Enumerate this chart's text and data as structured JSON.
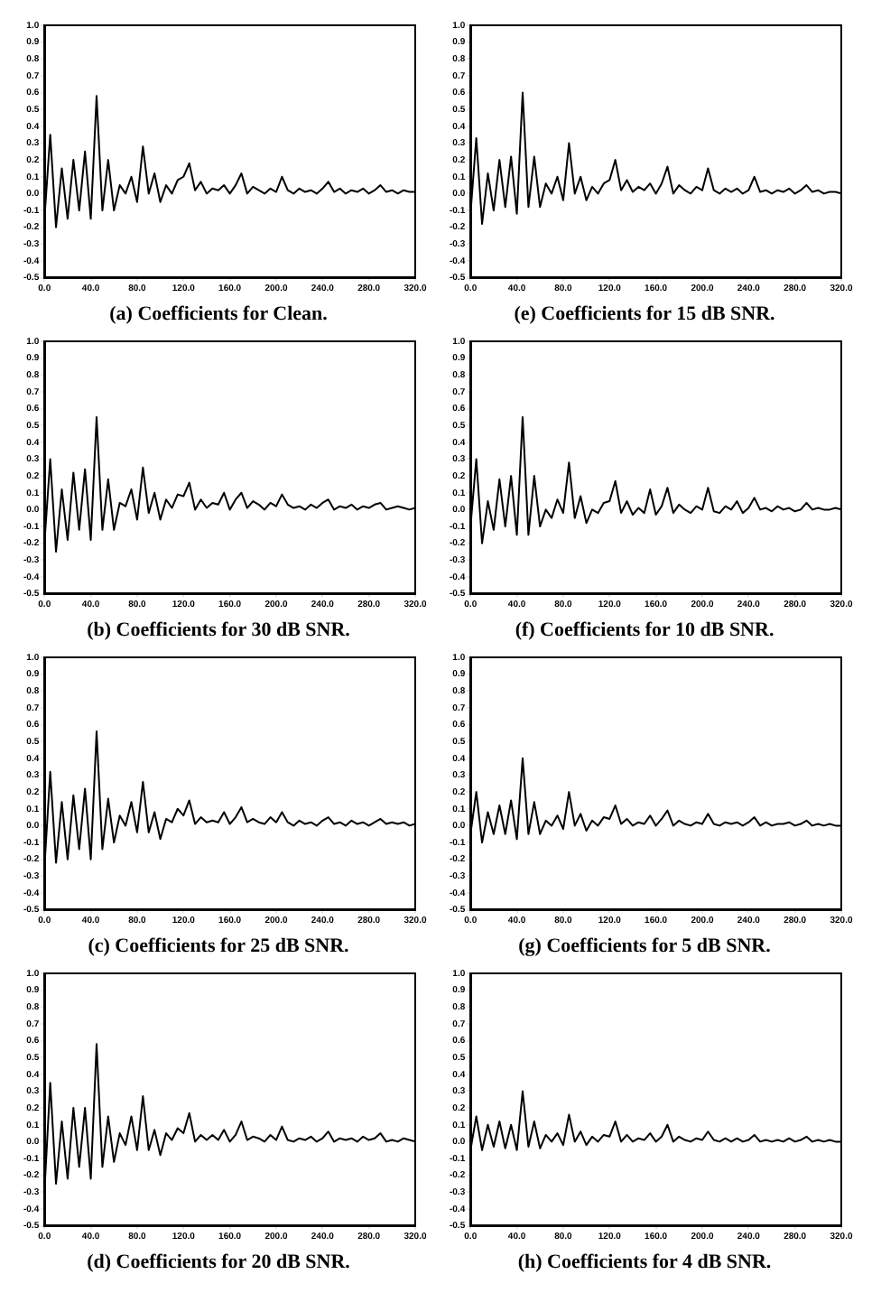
{
  "chart_data": [
    {
      "type": "line",
      "title": "(a) Coefficients for Clean.",
      "color": "#000000",
      "marker": "none",
      "line_style": "solid",
      "grid": false,
      "legend": false,
      "xlim": [
        0,
        320
      ],
      "ylim": [
        -0.5,
        1
      ],
      "xticks": [
        {
          "value": 0,
          "label": "0.0"
        },
        {
          "value": 40,
          "label": "40.0"
        },
        {
          "value": 80,
          "label": "80.0"
        },
        {
          "value": 120,
          "label": "120.0"
        },
        {
          "value": 160,
          "label": "160.0"
        },
        {
          "value": 200,
          "label": "200.0"
        },
        {
          "value": 240,
          "label": "240.0"
        },
        {
          "value": 280,
          "label": "280.0"
        },
        {
          "value": 320,
          "label": "320.0"
        }
      ],
      "yticks": [
        {
          "value": 1,
          "label": "1.0"
        },
        {
          "value": 0.9,
          "label": "0.9"
        },
        {
          "value": 0.8,
          "label": "0.8"
        },
        {
          "value": 0.7,
          "label": "0.7"
        },
        {
          "value": 0.6,
          "label": "0.6"
        },
        {
          "value": 0.5,
          "label": "0.5"
        },
        {
          "value": 0.4,
          "label": "0.4"
        },
        {
          "value": 0.3,
          "label": "0.3"
        },
        {
          "value": 0.2,
          "label": "0.2"
        },
        {
          "value": 0.1,
          "label": "0.1"
        },
        {
          "value": 0,
          "label": "0.0"
        },
        {
          "value": -0.1,
          "label": "-0.1"
        },
        {
          "value": -0.2,
          "label": "-0.2"
        },
        {
          "value": -0.3,
          "label": "-0.3"
        },
        {
          "value": -0.4,
          "label": "-0.4"
        },
        {
          "value": -0.5,
          "label": "-0.5"
        }
      ],
      "x": [
        0,
        5,
        10,
        15,
        20,
        25,
        30,
        35,
        40,
        45,
        50,
        55,
        60,
        65,
        70,
        75,
        80,
        85,
        90,
        95,
        100,
        105,
        110,
        115,
        120,
        125,
        130,
        135,
        140,
        145,
        150,
        155,
        160,
        165,
        170,
        175,
        180,
        185,
        190,
        195,
        200,
        205,
        210,
        215,
        220,
        225,
        230,
        235,
        240,
        245,
        250,
        255,
        260,
        265,
        270,
        275,
        280,
        285,
        290,
        295,
        300,
        305,
        310,
        315,
        320
      ],
      "values": [
        -0.15,
        0.35,
        -0.2,
        0.15,
        -0.15,
        0.2,
        -0.1,
        0.25,
        -0.15,
        0.58,
        -0.1,
        0.2,
        -0.1,
        0.05,
        0.0,
        0.1,
        -0.05,
        0.28,
        0.0,
        0.12,
        -0.05,
        0.05,
        0.0,
        0.08,
        0.1,
        0.18,
        0.02,
        0.07,
        0.0,
        0.03,
        0.02,
        0.05,
        0.0,
        0.05,
        0.12,
        0.0,
        0.04,
        0.02,
        0.0,
        0.03,
        0.01,
        0.1,
        0.02,
        0.0,
        0.03,
        0.01,
        0.02,
        0.0,
        0.03,
        0.07,
        0.01,
        0.03,
        0.0,
        0.02,
        0.01,
        0.03,
        0.0,
        0.02,
        0.05,
        0.01,
        0.02,
        0.0,
        0.02,
        0.01,
        0.01
      ]
    },
    {
      "type": "line",
      "title": "(b) Coefficients for 30 dB SNR.",
      "color": "#000000",
      "marker": "none",
      "line_style": "solid",
      "grid": false,
      "legend": false,
      "xlim": [
        0,
        320
      ],
      "ylim": [
        -0.5,
        1
      ],
      "xticks": [
        {
          "value": 0,
          "label": "0.0"
        },
        {
          "value": 40,
          "label": "40.0"
        },
        {
          "value": 80,
          "label": "80.0"
        },
        {
          "value": 120,
          "label": "120.0"
        },
        {
          "value": 160,
          "label": "160.0"
        },
        {
          "value": 200,
          "label": "200.0"
        },
        {
          "value": 240,
          "label": "240.0"
        },
        {
          "value": 280,
          "label": "280.0"
        },
        {
          "value": 320,
          "label": "320.0"
        }
      ],
      "yticks": [
        {
          "value": 1,
          "label": "1.0"
        },
        {
          "value": 0.9,
          "label": "0.9"
        },
        {
          "value": 0.8,
          "label": "0.8"
        },
        {
          "value": 0.7,
          "label": "0.7"
        },
        {
          "value": 0.6,
          "label": "0.6"
        },
        {
          "value": 0.5,
          "label": "0.5"
        },
        {
          "value": 0.4,
          "label": "0.4"
        },
        {
          "value": 0.3,
          "label": "0.3"
        },
        {
          "value": 0.2,
          "label": "0.2"
        },
        {
          "value": 0.1,
          "label": "0.1"
        },
        {
          "value": 0,
          "label": "0.0"
        },
        {
          "value": -0.1,
          "label": "-0.1"
        },
        {
          "value": -0.2,
          "label": "-0.2"
        },
        {
          "value": -0.3,
          "label": "-0.3"
        },
        {
          "value": -0.4,
          "label": "-0.4"
        },
        {
          "value": -0.5,
          "label": "-0.5"
        }
      ],
      "x": [
        0,
        5,
        10,
        15,
        20,
        25,
        30,
        35,
        40,
        45,
        50,
        55,
        60,
        65,
        70,
        75,
        80,
        85,
        90,
        95,
        100,
        105,
        110,
        115,
        120,
        125,
        130,
        135,
        140,
        145,
        150,
        155,
        160,
        165,
        170,
        175,
        180,
        185,
        190,
        195,
        200,
        205,
        210,
        215,
        220,
        225,
        230,
        235,
        240,
        245,
        250,
        255,
        260,
        265,
        270,
        275,
        280,
        285,
        290,
        295,
        300,
        305,
        310,
        315,
        320
      ],
      "values": [
        -0.2,
        0.3,
        -0.25,
        0.12,
        -0.18,
        0.22,
        -0.12,
        0.24,
        -0.18,
        0.55,
        -0.12,
        0.18,
        -0.12,
        0.04,
        0.02,
        0.12,
        -0.06,
        0.25,
        -0.02,
        0.1,
        -0.06,
        0.06,
        0.01,
        0.09,
        0.08,
        0.16,
        0.0,
        0.06,
        0.01,
        0.04,
        0.03,
        0.1,
        0.0,
        0.06,
        0.1,
        0.01,
        0.05,
        0.03,
        0.0,
        0.04,
        0.02,
        0.09,
        0.03,
        0.01,
        0.02,
        0.0,
        0.03,
        0.01,
        0.04,
        0.06,
        0.0,
        0.02,
        0.01,
        0.03,
        0.0,
        0.02,
        0.01,
        0.03,
        0.04,
        0.0,
        0.01,
        0.02,
        0.01,
        0.0,
        0.01
      ]
    },
    {
      "type": "line",
      "title": "(c) Coefficients for 25 dB SNR.",
      "color": "#000000",
      "marker": "none",
      "line_style": "solid",
      "grid": false,
      "legend": false,
      "xlim": [
        0,
        320
      ],
      "ylim": [
        -0.5,
        1
      ],
      "xticks": [
        {
          "value": 0,
          "label": "0.0"
        },
        {
          "value": 40,
          "label": "40.0"
        },
        {
          "value": 80,
          "label": "80.0"
        },
        {
          "value": 120,
          "label": "120.0"
        },
        {
          "value": 160,
          "label": "160.0"
        },
        {
          "value": 200,
          "label": "200.0"
        },
        {
          "value": 240,
          "label": "240.0"
        },
        {
          "value": 280,
          "label": "280.0"
        },
        {
          "value": 320,
          "label": "320.0"
        }
      ],
      "yticks": [
        {
          "value": 1,
          "label": "1.0"
        },
        {
          "value": 0.9,
          "label": "0.9"
        },
        {
          "value": 0.8,
          "label": "0.8"
        },
        {
          "value": 0.7,
          "label": "0.7"
        },
        {
          "value": 0.6,
          "label": "0.6"
        },
        {
          "value": 0.5,
          "label": "0.5"
        },
        {
          "value": 0.4,
          "label": "0.4"
        },
        {
          "value": 0.3,
          "label": "0.3"
        },
        {
          "value": 0.2,
          "label": "0.2"
        },
        {
          "value": 0.1,
          "label": "0.1"
        },
        {
          "value": 0,
          "label": "0.0"
        },
        {
          "value": -0.1,
          "label": "-0.1"
        },
        {
          "value": -0.2,
          "label": "-0.2"
        },
        {
          "value": -0.3,
          "label": "-0.3"
        },
        {
          "value": -0.4,
          "label": "-0.4"
        },
        {
          "value": -0.5,
          "label": "-0.5"
        }
      ],
      "x": [
        0,
        5,
        10,
        15,
        20,
        25,
        30,
        35,
        40,
        45,
        50,
        55,
        60,
        65,
        70,
        75,
        80,
        85,
        90,
        95,
        100,
        105,
        110,
        115,
        120,
        125,
        130,
        135,
        140,
        145,
        150,
        155,
        160,
        165,
        170,
        175,
        180,
        185,
        190,
        195,
        200,
        205,
        210,
        215,
        220,
        225,
        230,
        235,
        240,
        245,
        250,
        255,
        260,
        265,
        270,
        275,
        280,
        285,
        290,
        295,
        300,
        305,
        310,
        315,
        320
      ],
      "values": [
        -0.25,
        0.32,
        -0.22,
        0.14,
        -0.2,
        0.18,
        -0.14,
        0.22,
        -0.2,
        0.56,
        -0.14,
        0.16,
        -0.1,
        0.06,
        0.0,
        0.14,
        -0.04,
        0.26,
        -0.04,
        0.08,
        -0.08,
        0.04,
        0.02,
        0.1,
        0.06,
        0.15,
        0.01,
        0.05,
        0.02,
        0.03,
        0.02,
        0.08,
        0.01,
        0.05,
        0.11,
        0.02,
        0.04,
        0.02,
        0.01,
        0.05,
        0.02,
        0.08,
        0.02,
        0.0,
        0.03,
        0.01,
        0.02,
        0.0,
        0.03,
        0.05,
        0.01,
        0.02,
        0.0,
        0.03,
        0.01,
        0.02,
        0.0,
        0.02,
        0.04,
        0.01,
        0.02,
        0.01,
        0.02,
        0.0,
        0.01
      ]
    },
    {
      "type": "line",
      "title": "(d) Coefficients for 20 dB SNR.",
      "color": "#000000",
      "marker": "none",
      "line_style": "solid",
      "grid": false,
      "legend": false,
      "xlim": [
        0,
        320
      ],
      "ylim": [
        -0.5,
        1
      ],
      "xticks": [
        {
          "value": 0,
          "label": "0.0"
        },
        {
          "value": 40,
          "label": "40.0"
        },
        {
          "value": 80,
          "label": "80.0"
        },
        {
          "value": 120,
          "label": "120.0"
        },
        {
          "value": 160,
          "label": "160.0"
        },
        {
          "value": 200,
          "label": "200.0"
        },
        {
          "value": 240,
          "label": "240.0"
        },
        {
          "value": 280,
          "label": "280.0"
        },
        {
          "value": 320,
          "label": "320.0"
        }
      ],
      "yticks": [
        {
          "value": 1,
          "label": "1.0"
        },
        {
          "value": 0.9,
          "label": "0.9"
        },
        {
          "value": 0.8,
          "label": "0.8"
        },
        {
          "value": 0.7,
          "label": "0.7"
        },
        {
          "value": 0.6,
          "label": "0.6"
        },
        {
          "value": 0.5,
          "label": "0.5"
        },
        {
          "value": 0.4,
          "label": "0.4"
        },
        {
          "value": 0.3,
          "label": "0.3"
        },
        {
          "value": 0.2,
          "label": "0.2"
        },
        {
          "value": 0.1,
          "label": "0.1"
        },
        {
          "value": 0,
          "label": "0.0"
        },
        {
          "value": -0.1,
          "label": "-0.1"
        },
        {
          "value": -0.2,
          "label": "-0.2"
        },
        {
          "value": -0.3,
          "label": "-0.3"
        },
        {
          "value": -0.4,
          "label": "-0.4"
        },
        {
          "value": -0.5,
          "label": "-0.5"
        }
      ],
      "x": [
        0,
        5,
        10,
        15,
        20,
        25,
        30,
        35,
        40,
        45,
        50,
        55,
        60,
        65,
        70,
        75,
        80,
        85,
        90,
        95,
        100,
        105,
        110,
        115,
        120,
        125,
        130,
        135,
        140,
        145,
        150,
        155,
        160,
        165,
        170,
        175,
        180,
        185,
        190,
        195,
        200,
        205,
        210,
        215,
        220,
        225,
        230,
        235,
        240,
        245,
        250,
        255,
        260,
        265,
        270,
        275,
        280,
        285,
        290,
        295,
        300,
        305,
        310,
        315,
        320
      ],
      "values": [
        -0.3,
        0.35,
        -0.25,
        0.12,
        -0.22,
        0.2,
        -0.15,
        0.2,
        -0.22,
        0.58,
        -0.15,
        0.15,
        -0.12,
        0.05,
        -0.02,
        0.15,
        -0.05,
        0.27,
        -0.05,
        0.07,
        -0.08,
        0.05,
        0.01,
        0.08,
        0.05,
        0.17,
        0.0,
        0.04,
        0.01,
        0.04,
        0.01,
        0.07,
        0.0,
        0.04,
        0.12,
        0.01,
        0.03,
        0.02,
        0.0,
        0.04,
        0.01,
        0.09,
        0.01,
        0.0,
        0.02,
        0.01,
        0.03,
        0.0,
        0.02,
        0.06,
        0.0,
        0.02,
        0.01,
        0.02,
        0.0,
        0.03,
        0.01,
        0.02,
        0.05,
        0.0,
        0.01,
        0.0,
        0.02,
        0.01,
        0.0
      ]
    },
    {
      "type": "line",
      "title": "(e) Coefficients for 15 dB SNR.",
      "color": "#000000",
      "marker": "none",
      "line_style": "solid",
      "grid": false,
      "legend": false,
      "xlim": [
        0,
        320
      ],
      "ylim": [
        -0.5,
        1
      ],
      "xticks": [
        {
          "value": 0,
          "label": "0.0"
        },
        {
          "value": 40,
          "label": "40.0"
        },
        {
          "value": 80,
          "label": "80.0"
        },
        {
          "value": 120,
          "label": "120.0"
        },
        {
          "value": 160,
          "label": "160.0"
        },
        {
          "value": 200,
          "label": "200.0"
        },
        {
          "value": 240,
          "label": "240.0"
        },
        {
          "value": 280,
          "label": "280.0"
        },
        {
          "value": 320,
          "label": "320.0"
        }
      ],
      "yticks": [
        {
          "value": 1,
          "label": "1.0"
        },
        {
          "value": 0.9,
          "label": "0.9"
        },
        {
          "value": 0.8,
          "label": "0.8"
        },
        {
          "value": 0.7,
          "label": "0.7"
        },
        {
          "value": 0.6,
          "label": "0.6"
        },
        {
          "value": 0.5,
          "label": "0.5"
        },
        {
          "value": 0.4,
          "label": "0.4"
        },
        {
          "value": 0.3,
          "label": "0.3"
        },
        {
          "value": 0.2,
          "label": "0.2"
        },
        {
          "value": 0.1,
          "label": "0.1"
        },
        {
          "value": 0,
          "label": "0.0"
        },
        {
          "value": -0.1,
          "label": "-0.1"
        },
        {
          "value": -0.2,
          "label": "-0.2"
        },
        {
          "value": -0.3,
          "label": "-0.3"
        },
        {
          "value": -0.4,
          "label": "-0.4"
        },
        {
          "value": -0.5,
          "label": "-0.5"
        }
      ],
      "x": [
        0,
        5,
        10,
        15,
        20,
        25,
        30,
        35,
        40,
        45,
        50,
        55,
        60,
        65,
        70,
        75,
        80,
        85,
        90,
        95,
        100,
        105,
        110,
        115,
        120,
        125,
        130,
        135,
        140,
        145,
        150,
        155,
        160,
        165,
        170,
        175,
        180,
        185,
        190,
        195,
        200,
        205,
        210,
        215,
        220,
        225,
        230,
        235,
        240,
        245,
        250,
        255,
        260,
        265,
        270,
        275,
        280,
        285,
        290,
        295,
        300,
        305,
        310,
        315,
        320
      ],
      "values": [
        -0.12,
        0.33,
        -0.18,
        0.12,
        -0.1,
        0.2,
        -0.08,
        0.22,
        -0.12,
        0.6,
        -0.08,
        0.22,
        -0.08,
        0.06,
        0.0,
        0.1,
        -0.04,
        0.3,
        0.0,
        0.1,
        -0.04,
        0.04,
        0.0,
        0.06,
        0.08,
        0.2,
        0.02,
        0.08,
        0.01,
        0.04,
        0.02,
        0.06,
        0.0,
        0.06,
        0.16,
        0.0,
        0.05,
        0.02,
        0.0,
        0.04,
        0.02,
        0.15,
        0.02,
        0.0,
        0.03,
        0.01,
        0.03,
        0.0,
        0.02,
        0.1,
        0.01,
        0.02,
        0.0,
        0.02,
        0.01,
        0.03,
        0.0,
        0.02,
        0.05,
        0.01,
        0.02,
        0.0,
        0.01,
        0.01,
        0.0
      ]
    },
    {
      "type": "line",
      "title": "(f) Coefficients for 10 dB SNR.",
      "color": "#000000",
      "marker": "none",
      "line_style": "solid",
      "grid": false,
      "legend": false,
      "xlim": [
        0,
        320
      ],
      "ylim": [
        -0.5,
        1
      ],
      "xticks": [
        {
          "value": 0,
          "label": "0.0"
        },
        {
          "value": 40,
          "label": "40.0"
        },
        {
          "value": 80,
          "label": "80.0"
        },
        {
          "value": 120,
          "label": "120.0"
        },
        {
          "value": 160,
          "label": "160.0"
        },
        {
          "value": 200,
          "label": "200.0"
        },
        {
          "value": 240,
          "label": "240.0"
        },
        {
          "value": 280,
          "label": "280.0"
        },
        {
          "value": 320,
          "label": "320.0"
        }
      ],
      "yticks": [
        {
          "value": 1,
          "label": "1.0"
        },
        {
          "value": 0.9,
          "label": "0.9"
        },
        {
          "value": 0.8,
          "label": "0.8"
        },
        {
          "value": 0.7,
          "label": "0.7"
        },
        {
          "value": 0.6,
          "label": "0.6"
        },
        {
          "value": 0.5,
          "label": "0.5"
        },
        {
          "value": 0.4,
          "label": "0.4"
        },
        {
          "value": 0.3,
          "label": "0.3"
        },
        {
          "value": 0.2,
          "label": "0.2"
        },
        {
          "value": 0.1,
          "label": "0.1"
        },
        {
          "value": 0,
          "label": "0.0"
        },
        {
          "value": -0.1,
          "label": "-0.1"
        },
        {
          "value": -0.2,
          "label": "-0.2"
        },
        {
          "value": -0.3,
          "label": "-0.3"
        },
        {
          "value": -0.4,
          "label": "-0.4"
        },
        {
          "value": -0.5,
          "label": "-0.5"
        }
      ],
      "x": [
        0,
        5,
        10,
        15,
        20,
        25,
        30,
        35,
        40,
        45,
        50,
        55,
        60,
        65,
        70,
        75,
        80,
        85,
        90,
        95,
        100,
        105,
        110,
        115,
        120,
        125,
        130,
        135,
        140,
        145,
        150,
        155,
        160,
        165,
        170,
        175,
        180,
        185,
        190,
        195,
        200,
        205,
        210,
        215,
        220,
        225,
        230,
        235,
        240,
        245,
        250,
        255,
        260,
        265,
        270,
        275,
        280,
        285,
        290,
        295,
        300,
        305,
        310,
        315,
        320
      ],
      "values": [
        -0.1,
        0.3,
        -0.2,
        0.05,
        -0.12,
        0.18,
        -0.1,
        0.2,
        -0.15,
        0.55,
        -0.15,
        0.2,
        -0.1,
        0.0,
        -0.05,
        0.06,
        -0.02,
        0.28,
        -0.05,
        0.08,
        -0.08,
        0.0,
        -0.02,
        0.04,
        0.05,
        0.17,
        -0.02,
        0.05,
        -0.03,
        0.01,
        -0.02,
        0.12,
        -0.03,
        0.02,
        0.13,
        -0.02,
        0.03,
        0.0,
        -0.02,
        0.02,
        0.0,
        0.13,
        -0.01,
        -0.02,
        0.02,
        0.0,
        0.05,
        -0.02,
        0.01,
        0.07,
        0.0,
        0.01,
        -0.01,
        0.02,
        0.0,
        0.01,
        -0.01,
        0.0,
        0.04,
        0.0,
        0.01,
        0.0,
        0.0,
        0.01,
        0.0
      ]
    },
    {
      "type": "line",
      "title": "(g) Coefficients for 5 dB SNR.",
      "color": "#000000",
      "marker": "none",
      "line_style": "solid",
      "grid": false,
      "legend": false,
      "xlim": [
        0,
        320
      ],
      "ylim": [
        -0.5,
        1
      ],
      "xticks": [
        {
          "value": 0,
          "label": "0.0"
        },
        {
          "value": 40,
          "label": "40.0"
        },
        {
          "value": 80,
          "label": "80.0"
        },
        {
          "value": 120,
          "label": "120.0"
        },
        {
          "value": 160,
          "label": "160.0"
        },
        {
          "value": 200,
          "label": "200.0"
        },
        {
          "value": 240,
          "label": "240.0"
        },
        {
          "value": 280,
          "label": "280.0"
        },
        {
          "value": 320,
          "label": "320.0"
        }
      ],
      "yticks": [
        {
          "value": 1,
          "label": "1.0"
        },
        {
          "value": 0.9,
          "label": "0.9"
        },
        {
          "value": 0.8,
          "label": "0.8"
        },
        {
          "value": 0.7,
          "label": "0.7"
        },
        {
          "value": 0.6,
          "label": "0.6"
        },
        {
          "value": 0.5,
          "label": "0.5"
        },
        {
          "value": 0.4,
          "label": "0.4"
        },
        {
          "value": 0.3,
          "label": "0.3"
        },
        {
          "value": 0.2,
          "label": "0.2"
        },
        {
          "value": 0.1,
          "label": "0.1"
        },
        {
          "value": 0,
          "label": "0.0"
        },
        {
          "value": -0.1,
          "label": "-0.1"
        },
        {
          "value": -0.2,
          "label": "-0.2"
        },
        {
          "value": -0.3,
          "label": "-0.3"
        },
        {
          "value": -0.4,
          "label": "-0.4"
        },
        {
          "value": -0.5,
          "label": "-0.5"
        }
      ],
      "x": [
        0,
        5,
        10,
        15,
        20,
        25,
        30,
        35,
        40,
        45,
        50,
        55,
        60,
        65,
        70,
        75,
        80,
        85,
        90,
        95,
        100,
        105,
        110,
        115,
        120,
        125,
        130,
        135,
        140,
        145,
        150,
        155,
        160,
        165,
        170,
        175,
        180,
        185,
        190,
        195,
        200,
        205,
        210,
        215,
        220,
        225,
        230,
        235,
        240,
        245,
        250,
        255,
        260,
        265,
        270,
        275,
        280,
        285,
        290,
        295,
        300,
        305,
        310,
        315,
        320
      ],
      "values": [
        -0.05,
        0.2,
        -0.1,
        0.08,
        -0.05,
        0.12,
        -0.05,
        0.15,
        -0.08,
        0.4,
        -0.05,
        0.14,
        -0.05,
        0.03,
        0.0,
        0.06,
        -0.02,
        0.2,
        0.0,
        0.07,
        -0.03,
        0.03,
        0.0,
        0.05,
        0.04,
        0.12,
        0.01,
        0.04,
        0.0,
        0.02,
        0.01,
        0.06,
        0.0,
        0.04,
        0.09,
        0.0,
        0.03,
        0.01,
        0.0,
        0.02,
        0.01,
        0.07,
        0.01,
        0.0,
        0.02,
        0.01,
        0.02,
        0.0,
        0.02,
        0.05,
        0.0,
        0.02,
        0.0,
        0.01,
        0.01,
        0.02,
        0.0,
        0.01,
        0.03,
        0.0,
        0.01,
        0.0,
        0.01,
        0.0,
        0.0
      ]
    },
    {
      "type": "line",
      "title": "(h) Coefficients for 4 dB SNR.",
      "color": "#000000",
      "marker": "none",
      "line_style": "solid",
      "grid": false,
      "legend": false,
      "xlim": [
        0,
        320
      ],
      "ylim": [
        -0.5,
        1
      ],
      "xticks": [
        {
          "value": 0,
          "label": "0.0"
        },
        {
          "value": 40,
          "label": "40.0"
        },
        {
          "value": 80,
          "label": "80.0"
        },
        {
          "value": 120,
          "label": "120.0"
        },
        {
          "value": 160,
          "label": "160.0"
        },
        {
          "value": 200,
          "label": "200.0"
        },
        {
          "value": 240,
          "label": "240.0"
        },
        {
          "value": 280,
          "label": "280.0"
        },
        {
          "value": 320,
          "label": "320.0"
        }
      ],
      "yticks": [
        {
          "value": 1,
          "label": "1.0"
        },
        {
          "value": 0.9,
          "label": "0.9"
        },
        {
          "value": 0.8,
          "label": "0.8"
        },
        {
          "value": 0.7,
          "label": "0.7"
        },
        {
          "value": 0.6,
          "label": "0.6"
        },
        {
          "value": 0.5,
          "label": "0.5"
        },
        {
          "value": 0.4,
          "label": "0.4"
        },
        {
          "value": 0.3,
          "label": "0.3"
        },
        {
          "value": 0.2,
          "label": "0.2"
        },
        {
          "value": 0.1,
          "label": "0.1"
        },
        {
          "value": 0,
          "label": "0.0"
        },
        {
          "value": -0.1,
          "label": "-0.1"
        },
        {
          "value": -0.2,
          "label": "-0.2"
        },
        {
          "value": -0.3,
          "label": "-0.3"
        },
        {
          "value": -0.4,
          "label": "-0.4"
        },
        {
          "value": -0.5,
          "label": "-0.5"
        }
      ],
      "x": [
        0,
        5,
        10,
        15,
        20,
        25,
        30,
        35,
        40,
        45,
        50,
        55,
        60,
        65,
        70,
        75,
        80,
        85,
        90,
        95,
        100,
        105,
        110,
        115,
        120,
        125,
        130,
        135,
        140,
        145,
        150,
        155,
        160,
        165,
        170,
        175,
        180,
        185,
        190,
        195,
        200,
        205,
        210,
        215,
        220,
        225,
        230,
        235,
        240,
        245,
        250,
        255,
        260,
        265,
        270,
        275,
        280,
        285,
        290,
        295,
        300,
        305,
        310,
        315,
        320
      ],
      "values": [
        -0.05,
        0.15,
        -0.05,
        0.1,
        -0.03,
        0.12,
        -0.04,
        0.1,
        -0.05,
        0.3,
        -0.03,
        0.12,
        -0.04,
        0.04,
        0.0,
        0.05,
        -0.02,
        0.16,
        0.0,
        0.06,
        -0.02,
        0.03,
        0.0,
        0.04,
        0.03,
        0.12,
        0.0,
        0.04,
        0.0,
        0.02,
        0.01,
        0.05,
        0.0,
        0.03,
        0.1,
        0.0,
        0.03,
        0.01,
        0.0,
        0.02,
        0.01,
        0.06,
        0.01,
        0.0,
        0.02,
        0.0,
        0.02,
        0.0,
        0.01,
        0.04,
        0.0,
        0.01,
        0.0,
        0.01,
        0.0,
        0.02,
        0.0,
        0.01,
        0.03,
        0.0,
        0.01,
        0.0,
        0.01,
        0.0,
        0.0
      ]
    }
  ]
}
